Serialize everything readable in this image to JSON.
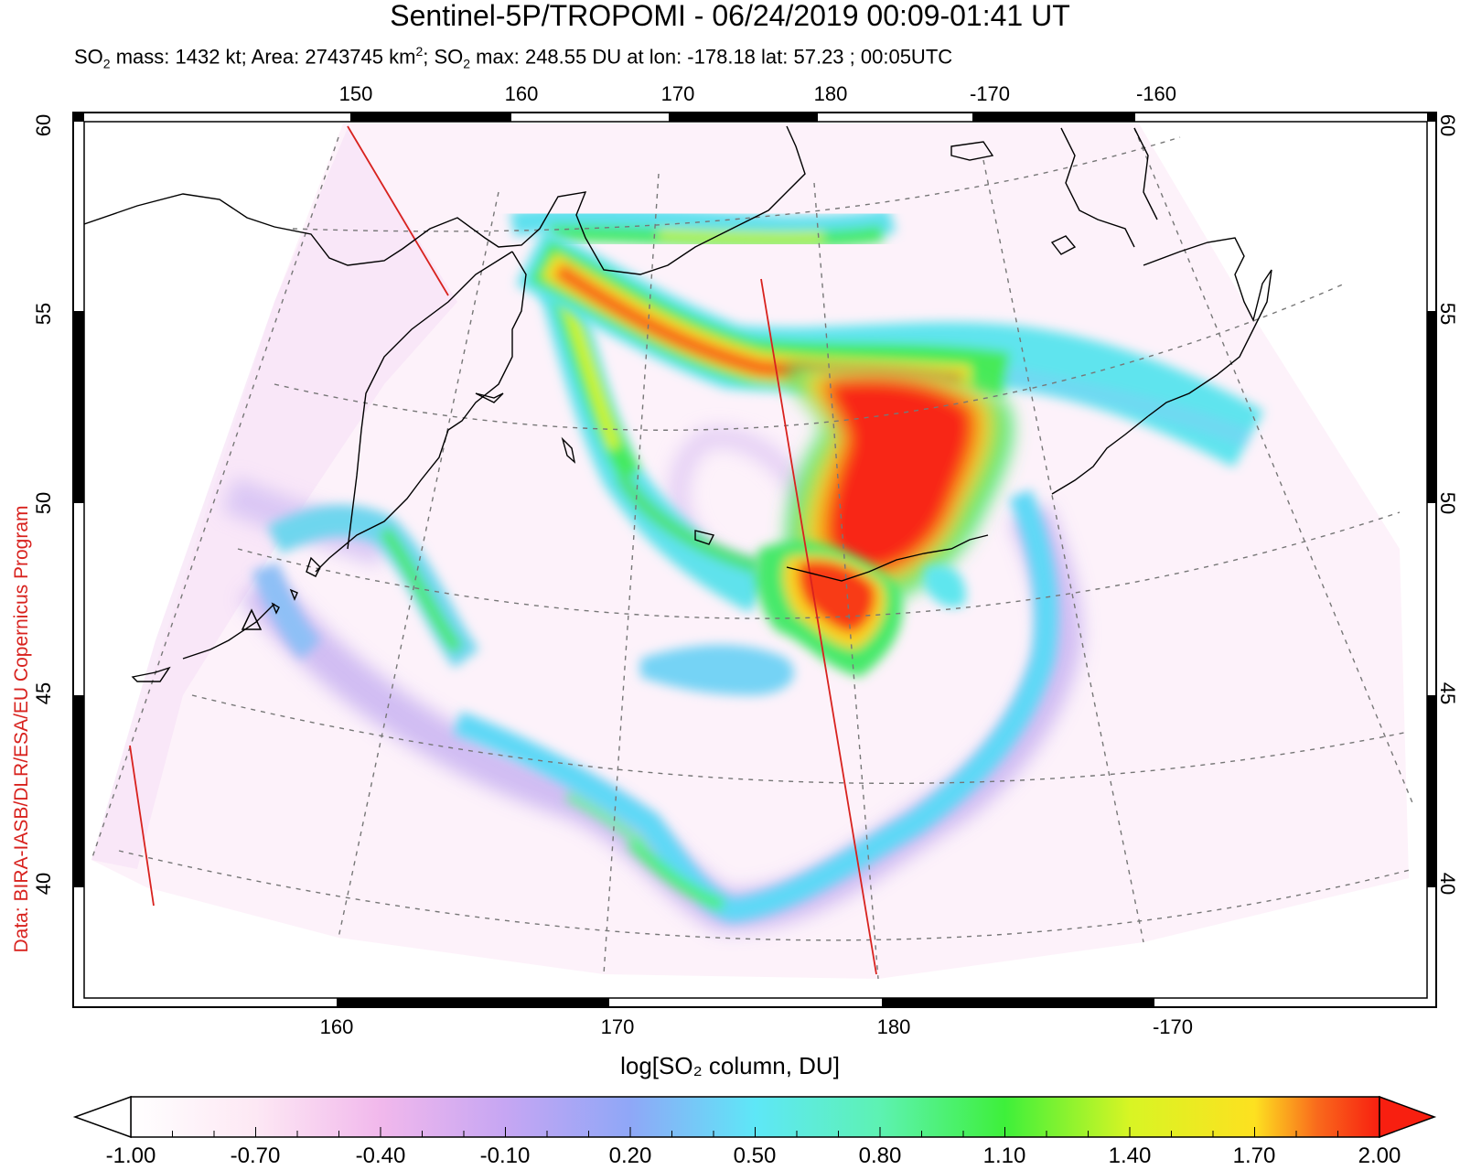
{
  "title": "Sentinel-5P/TROPOMI - 06/24/2019 00:09-01:41 UT",
  "stats": {
    "mass_label": "SO",
    "mass_sub": "2",
    "mass_text": " mass: 1432 kt; Area: 2743745 km",
    "area_sup": "2",
    "max_label": "; SO",
    "max_sub": "2",
    "max_text": " max: 248.55 DU at lon: -178.18 lat: 57.23 ; 00:05UTC"
  },
  "credit": "Data: BIRA-IASB/DLR/ESA/EU Copernicus Program",
  "top_lon_ticks": [
    "150",
    "160",
    "170",
    "180",
    "-170",
    "-160"
  ],
  "bottom_lon_ticks": [
    "160",
    "170",
    "180",
    "-170"
  ],
  "lat_ticks": [
    "60",
    "55",
    "50",
    "45",
    "40"
  ],
  "colorbar": {
    "title": "log[SO₂ column, DU]",
    "labels": [
      "-1.00",
      "-0.70",
      "-0.40",
      "-0.10",
      "0.20",
      "0.50",
      "0.80",
      "1.10",
      "1.40",
      "1.70",
      "2.00"
    ],
    "colors": [
      "#ffffff",
      "#fde8f4",
      "#f1b8ec",
      "#c6a6f3",
      "#8fa7f7",
      "#5ee7f7",
      "#5df2b2",
      "#3ef03a",
      "#d8f524",
      "#fde120",
      "#f96a1c",
      "#f81f10"
    ],
    "range": [
      -1.0,
      2.0
    ]
  },
  "map": {
    "projection": "polar stereographic",
    "region": "Kamchatka / Bering Sea / Aleutian Islands",
    "lat_range": [
      38,
      61
    ],
    "volcano_marker": "triangle"
  }
}
